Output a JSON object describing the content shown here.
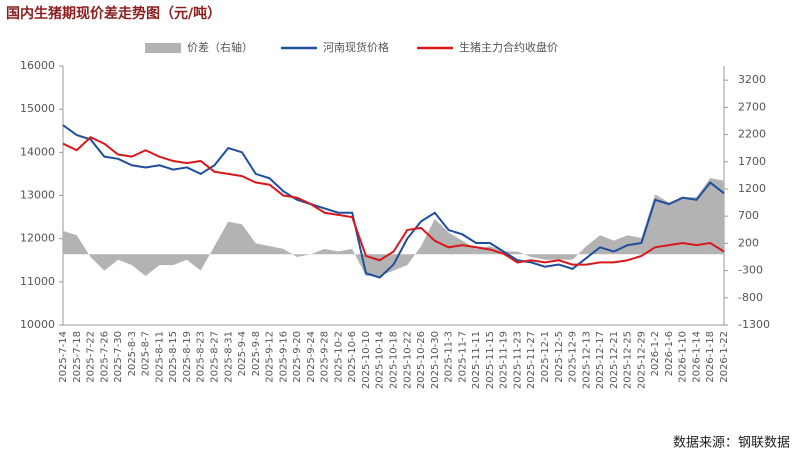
{
  "chart_data": {
    "type": "line",
    "title": "国内生猪期现价差走势图（元/吨）",
    "source": "数据来源：钢联数据",
    "categories": [
      "2025-7-14",
      "2025-7-18",
      "2025-7-22",
      "2025-7-26",
      "2025-7-30",
      "2025-8-3",
      "2025-8-7",
      "2025-8-11",
      "2025-8-15",
      "2025-8-19",
      "2025-8-23",
      "2025-8-27",
      "2025-8-31",
      "2025-9-4",
      "2025-9-8",
      "2025-9-12",
      "2025-9-16",
      "2025-9-20",
      "2025-9-24",
      "2025-9-28",
      "2025-10-2",
      "2025-10-6",
      "2025-10-10",
      "2025-10-14",
      "2025-10-18",
      "2025-10-22",
      "2025-10-26",
      "2025-10-30",
      "2025-11-3",
      "2025-11-7",
      "2025-11-11",
      "2025-11-15",
      "2025-11-19",
      "2025-11-23",
      "2025-11-27",
      "2025-12-1",
      "2025-12-5",
      "2025-12-9",
      "2025-12-13",
      "2025-12-17",
      "2025-12-21",
      "2025-12-25",
      "2025-12-29",
      "2026-1-2",
      "2026-1-6",
      "2026-1-10",
      "2026-1-14",
      "2026-1-18",
      "2026-1-22"
    ],
    "series": [
      {
        "name": "价差（右轴）",
        "color": "#b3b3b3",
        "axis": "y2",
        "style": "area",
        "values": [
          430,
          350,
          -50,
          -300,
          -100,
          -200,
          -400,
          -200,
          -200,
          -100,
          -300,
          150,
          600,
          550,
          200,
          150,
          100,
          -50,
          0,
          100,
          50,
          100,
          -400,
          -400,
          -300,
          -200,
          150,
          650,
          400,
          250,
          100,
          150,
          50,
          50,
          -50,
          -100,
          -100,
          -100,
          150,
          350,
          250,
          350,
          300,
          1100,
          950,
          1050,
          1050,
          1400,
          1350
        ]
      },
      {
        "name": "河南现货价格",
        "color": "#1f4e9c",
        "style": "line",
        "values": [
          14630,
          14400,
          14300,
          13900,
          13850,
          13700,
          13650,
          13700,
          13600,
          13650,
          13500,
          13700,
          14100,
          14000,
          13500,
          13400,
          13100,
          12900,
          12800,
          12700,
          12600,
          12600,
          11200,
          11100,
          11400,
          12000,
          12400,
          12600,
          12200,
          12100,
          11900,
          11900,
          11700,
          11500,
          11450,
          11350,
          11400,
          11300,
          11550,
          11800,
          11700,
          11850,
          11900,
          12900,
          12800,
          12950,
          12900,
          13300,
          13050
        ]
      },
      {
        "name": "生猪主力合约收盘价",
        "color": "#d7191c",
        "style": "line",
        "values": [
          14200,
          14050,
          14350,
          14200,
          13950,
          13900,
          14050,
          13900,
          13800,
          13750,
          13800,
          13550,
          13500,
          13450,
          13300,
          13250,
          13000,
          12950,
          12800,
          12600,
          12550,
          12500,
          11600,
          11500,
          11700,
          12200,
          12250,
          11950,
          11800,
          11850,
          11800,
          11750,
          11650,
          11450,
          11500,
          11450,
          11500,
          11400,
          11400,
          11450,
          11450,
          11500,
          11600,
          11800,
          11850,
          11900,
          11850,
          11900,
          11700
        ]
      }
    ],
    "ylim": [
      10000,
      16000
    ],
    "yticks": [
      10000,
      11000,
      12000,
      13000,
      14000,
      15000,
      16000
    ],
    "y2lim": [
      -1300,
      3460
    ],
    "y2ticks": [
      -1300,
      -800,
      -300,
      200,
      700,
      1200,
      1700,
      2200,
      2700,
      3200
    ]
  }
}
